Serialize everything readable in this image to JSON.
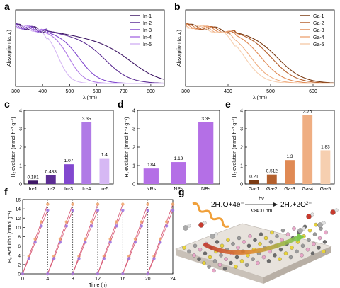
{
  "panels": {
    "a": "a",
    "b": "b",
    "c": "c",
    "d": "d",
    "e": "e",
    "f": "f",
    "g": "g"
  },
  "colors": {
    "in": [
      "#3f1866",
      "#5c2d94",
      "#8248cf",
      "#b07ae6",
      "#d6b8f4"
    ],
    "ga": [
      "#7a3a12",
      "#b4602d",
      "#e08a55",
      "#efae82",
      "#f6cfb0"
    ],
    "nbs": "#b46fe6",
    "f_orange": "#f0a36a",
    "f_purple": "#9b73e0",
    "f_pink": "#d9607a"
  },
  "chart_data": [
    {
      "panel": "a",
      "type": "line",
      "xlabel": "λ (nm)",
      "ylabel": "Absorption (a.u.)",
      "xlim": [
        300,
        850
      ],
      "xticks": [
        300,
        400,
        500,
        600,
        700,
        800
      ],
      "legend": "top-right",
      "series": [
        {
          "name": "In-1",
          "edge": 740,
          "width": 55
        },
        {
          "name": "In-2",
          "edge": 640,
          "width": 45
        },
        {
          "name": "In-3",
          "edge": 540,
          "width": 35
        },
        {
          "name": "In-4",
          "edge": 500,
          "width": 28
        },
        {
          "name": "In-5",
          "edge": 460,
          "width": 22
        }
      ]
    },
    {
      "panel": "b",
      "type": "line",
      "xlabel": "λ (nm)",
      "ylabel": "Absorption (a.u.)",
      "xlim": [
        300,
        650
      ],
      "xticks": [
        300,
        400,
        500,
        600
      ],
      "legend": "top-right",
      "series": [
        {
          "name": "Ga-1",
          "edge": 520,
          "width": 30
        },
        {
          "name": "Ga-2",
          "edge": 505,
          "width": 28
        },
        {
          "name": "Ga-3",
          "edge": 480,
          "width": 26
        },
        {
          "name": "Ga-4",
          "edge": 455,
          "width": 24
        },
        {
          "name": "Ga-5",
          "edge": 440,
          "width": 22
        }
      ]
    },
    {
      "panel": "c",
      "type": "bar",
      "ylabel": "H₂ evolution (mmol h⁻¹ g⁻¹)",
      "ylim": [
        0,
        4
      ],
      "yticks": [
        0,
        1,
        2,
        3,
        4
      ],
      "categories": [
        "In-1",
        "In-2",
        "In-3",
        "In-4",
        "In-5"
      ],
      "values": [
        0.181,
        0.483,
        1.07,
        3.35,
        1.4
      ],
      "labels": [
        "0.181",
        "0.483",
        "1.07",
        "3.35",
        "1.4"
      ]
    },
    {
      "panel": "d",
      "type": "bar",
      "ylabel": "H₂ evolution (mmol h⁻¹ g⁻¹)",
      "ylim": [
        0,
        4
      ],
      "yticks": [
        0,
        1,
        2,
        3,
        4
      ],
      "categories": [
        "NRs",
        "NPs",
        "NBs"
      ],
      "values": [
        0.84,
        1.19,
        3.35
      ],
      "labels": [
        "0.84",
        "1.19",
        "3.35"
      ]
    },
    {
      "panel": "e",
      "type": "bar",
      "ylabel": "H₂ evolution (mmol h⁻¹ g⁻¹)",
      "ylim": [
        0,
        4
      ],
      "yticks": [
        0,
        1,
        2,
        3,
        4
      ],
      "categories": [
        "Ga-1",
        "Ga-2",
        "Ga-3",
        "Ga-4",
        "Ga-5"
      ],
      "values": [
        0.21,
        0.512,
        1.3,
        3.75,
        1.83
      ],
      "labels": [
        "0.21",
        "0.512",
        "1.3",
        "3.75",
        "1.83"
      ]
    },
    {
      "panel": "f",
      "type": "line",
      "xlabel": "Time (h)",
      "ylabel": "H₂ evolution (mmol g⁻¹)",
      "xlim": [
        0,
        24
      ],
      "ylim": [
        0,
        16
      ],
      "xticks": [
        0,
        4,
        8,
        12,
        16,
        20,
        24
      ],
      "yticks": [
        0,
        2,
        4,
        6,
        8,
        10,
        12,
        14,
        16
      ],
      "cycle_boundaries": [
        4,
        8,
        12,
        16,
        20
      ],
      "series": [
        {
          "color": "orange",
          "cycle_points": [
            [
              0,
              0
            ],
            [
              1,
              3.8
            ],
            [
              2,
              7.5
            ],
            [
              3,
              11.2
            ],
            [
              4,
              15.0
            ]
          ]
        },
        {
          "color": "purple",
          "cycle_points": [
            [
              0,
              0
            ],
            [
              1,
              3.3
            ],
            [
              2,
              6.8
            ],
            [
              3,
              10.3
            ],
            [
              4,
              13.7
            ]
          ]
        }
      ]
    }
  ],
  "scheme": {
    "equation_left": "2H₂O+4e⁻",
    "arrow_top": "hv",
    "arrow_bottom": "λ>400 nm",
    "equation_right": "2H₂+2O²⁻"
  }
}
